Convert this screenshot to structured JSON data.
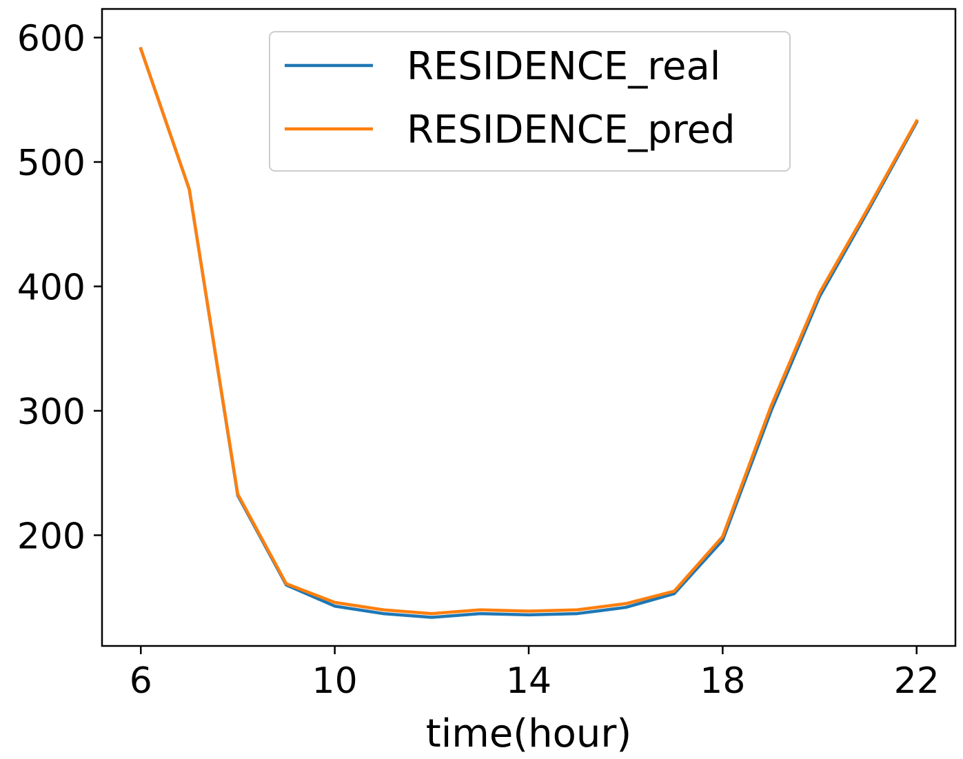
{
  "chart_data": {
    "type": "line",
    "title": "",
    "xlabel": "time(hour)",
    "ylabel": "",
    "xlim": [
      5.2,
      22.8
    ],
    "ylim": [
      111,
      623
    ],
    "xticks": [
      6,
      10,
      14,
      18,
      22
    ],
    "yticks": [
      200,
      300,
      400,
      500,
      600
    ],
    "grid": false,
    "legend_position": "upper center",
    "x": [
      6,
      7,
      8,
      9,
      10,
      11,
      12,
      13,
      14,
      15,
      16,
      17,
      18,
      19,
      20,
      21,
      22
    ],
    "series": [
      {
        "name": "RESIDENCE_real",
        "color": "#1f77b4",
        "values": [
          591,
          478,
          232,
          160,
          143,
          137,
          134,
          137,
          136,
          137,
          142,
          153,
          196,
          300,
          392,
          461,
          532
        ]
      },
      {
        "name": "RESIDENCE_pred",
        "color": "#ff7f0e",
        "values": [
          591,
          478,
          233,
          161,
          146,
          140,
          137,
          140,
          139,
          140,
          145,
          155,
          199,
          304,
          395,
          463,
          533
        ]
      }
    ]
  }
}
